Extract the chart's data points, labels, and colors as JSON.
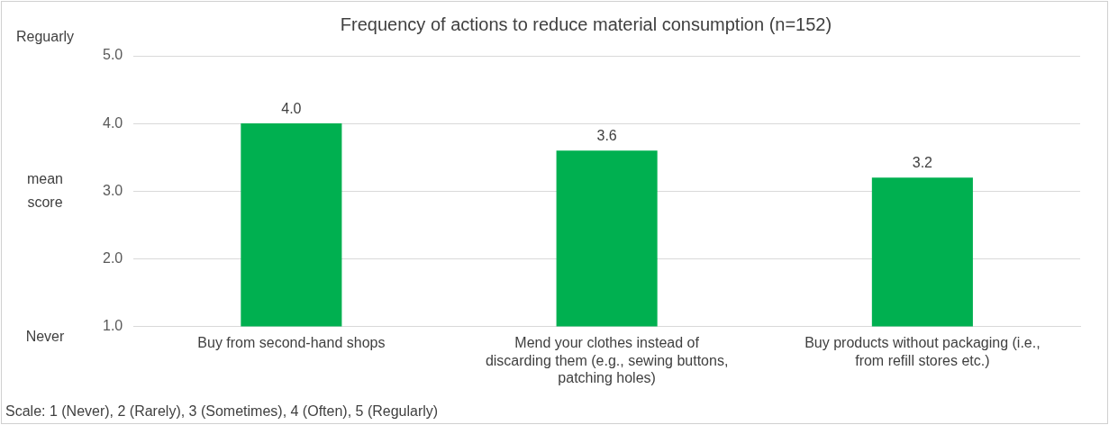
{
  "chart_data": {
    "type": "bar",
    "title": "Frequency of actions to reduce material consumption (n=152)",
    "ylabel": "mean score",
    "categories": [
      "Buy from second-hand shops",
      "Mend your clothes instead of discarding them (e.g., sewing buttons, patching holes)",
      "Buy products without packaging (i.e., from refill stores etc.)"
    ],
    "values": [
      4.0,
      3.6,
      3.2
    ],
    "color": "#00b050",
    "value_labels": [
      "4.0",
      "3.6",
      "3.2"
    ],
    "ylim": [
      1,
      5
    ],
    "yticks": [
      {
        "value": 1,
        "label": "1.0"
      },
      {
        "value": 2,
        "label": "2.0"
      },
      {
        "value": 3,
        "label": "3.0"
      },
      {
        "value": 4,
        "label": "4.0"
      },
      {
        "value": 5,
        "label": "5.0"
      }
    ],
    "grid": "y",
    "legend": false,
    "annotations": [
      "Reguarly",
      "Never",
      "Scale: 1 (Never), 2 (Rarely), 3 (Sometimes), 4 (Often), 5 (Regularly)"
    ]
  }
}
